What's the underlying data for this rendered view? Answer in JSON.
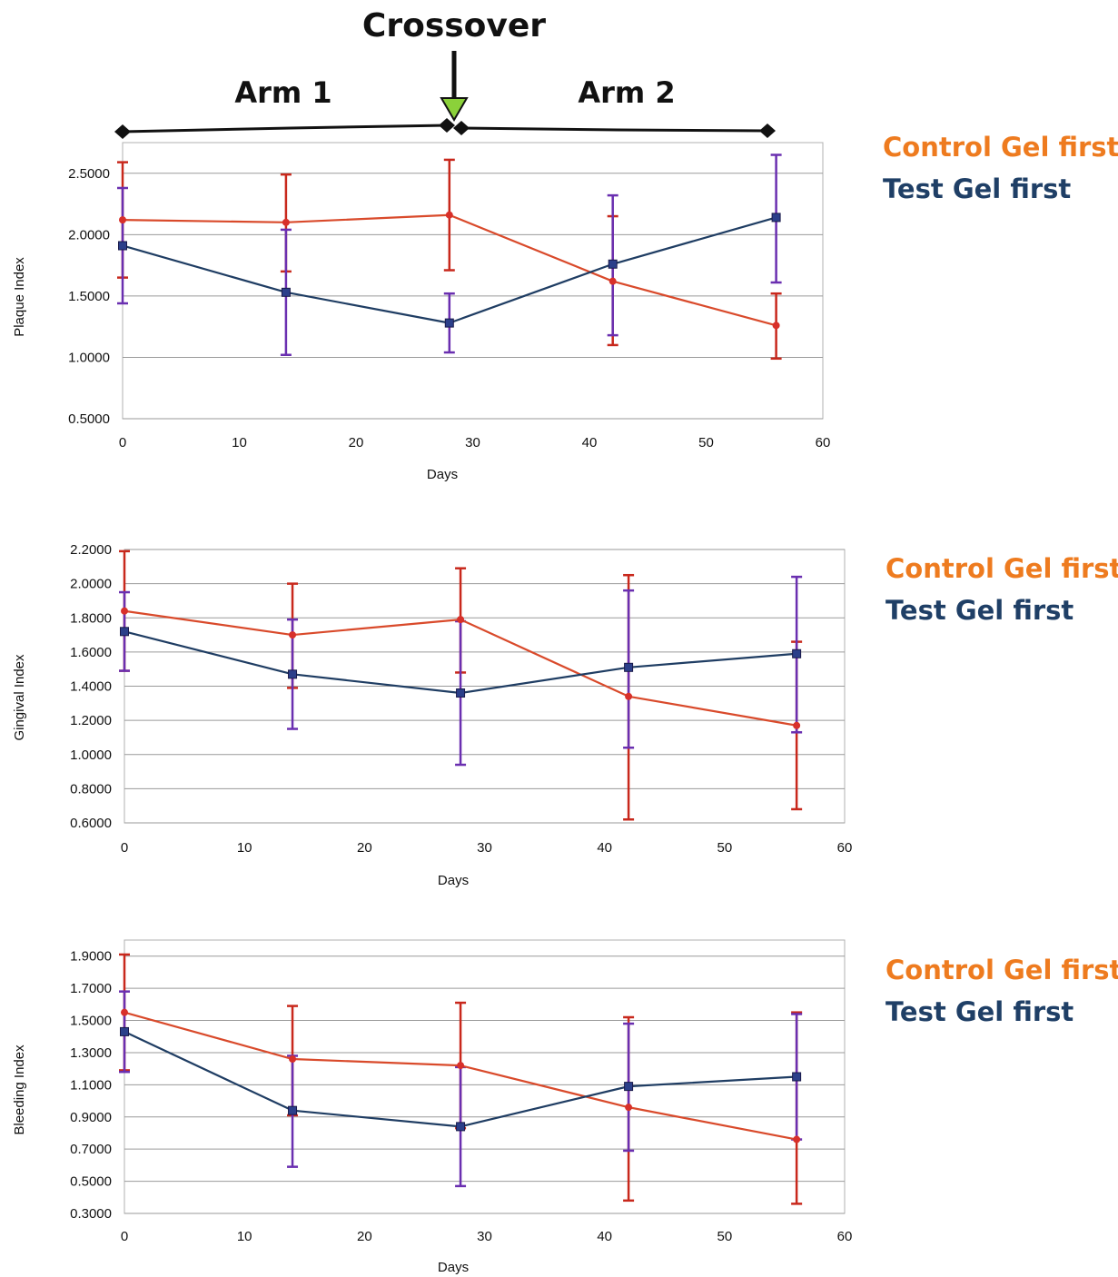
{
  "header": {
    "crossover_label": "Crossover",
    "arm1_label": "Arm 1",
    "arm2_label": "Arm 2"
  },
  "colors": {
    "control": "#d94a2b",
    "test": "#1f3d63",
    "control_legend": "#ee7b1f",
    "test_legend": "#1f3f66",
    "error_bar_test": "#6a2fb0",
    "error_bar_control": "#c8281c",
    "grid": "#9a9a9a",
    "crossover_arrow_tip": "#8bd13a"
  },
  "legend": {
    "control": "Control Gel first",
    "test": "Test Gel first"
  },
  "chart_data": [
    {
      "type": "line",
      "xlabel": "Days",
      "ylabel": "Plaque Index",
      "xlim": [
        0,
        60
      ],
      "ylim": [
        0.5,
        2.75
      ],
      "x_ticks": [
        "0",
        "10",
        "20",
        "30",
        "40",
        "50",
        "60"
      ],
      "y_ticks": [
        "0.5000",
        "1.0000",
        "1.5000",
        "2.0000",
        "2.5000"
      ],
      "grid": true,
      "legend_position": "right",
      "x": [
        0,
        14,
        28,
        42,
        56
      ],
      "series": [
        {
          "name": "Control Gel first",
          "values": [
            2.12,
            2.1,
            2.16,
            1.62,
            1.26
          ],
          "err_low": [
            1.65,
            1.7,
            1.71,
            1.1,
            0.99
          ],
          "err_high": [
            2.59,
            2.49,
            2.61,
            2.15,
            1.52
          ]
        },
        {
          "name": "Test Gel first",
          "values": [
            1.91,
            1.53,
            1.28,
            1.76,
            2.14
          ],
          "err_low": [
            1.44,
            1.02,
            1.04,
            1.18,
            1.61
          ],
          "err_high": [
            2.38,
            2.04,
            1.52,
            2.32,
            2.65
          ]
        }
      ]
    },
    {
      "type": "line",
      "xlabel": "Days",
      "ylabel": "Gingival Index",
      "xlim": [
        0,
        60
      ],
      "ylim": [
        0.6,
        2.2
      ],
      "x_ticks": [
        "0",
        "10",
        "20",
        "30",
        "40",
        "50",
        "60"
      ],
      "y_ticks": [
        "0.6000",
        "0.8000",
        "1.0000",
        "1.2000",
        "1.4000",
        "1.6000",
        "1.8000",
        "2.0000",
        "2.2000"
      ],
      "grid": true,
      "legend_position": "right",
      "x": [
        0,
        14,
        28,
        42,
        56
      ],
      "series": [
        {
          "name": "Control Gel first",
          "values": [
            1.84,
            1.7,
            1.79,
            1.34,
            1.17
          ],
          "err_low": [
            1.49,
            1.39,
            1.48,
            0.62,
            0.68
          ],
          "err_high": [
            2.19,
            2.0,
            2.09,
            2.05,
            1.66
          ]
        },
        {
          "name": "Test Gel first",
          "values": [
            1.72,
            1.47,
            1.36,
            1.51,
            1.59
          ],
          "err_low": [
            1.49,
            1.15,
            0.94,
            1.04,
            1.13
          ],
          "err_high": [
            1.95,
            1.79,
            1.78,
            1.96,
            2.04
          ]
        }
      ]
    },
    {
      "type": "line",
      "xlabel": "Days",
      "ylabel": "Bleeding Index",
      "xlim": [
        0,
        60
      ],
      "ylim": [
        0.3,
        2.0
      ],
      "x_ticks": [
        "0",
        "10",
        "20",
        "30",
        "40",
        "50",
        "60"
      ],
      "y_ticks": [
        "0.3000",
        "0.5000",
        "0.7000",
        "0.9000",
        "1.1000",
        "1.3000",
        "1.5000",
        "1.7000",
        "1.9000"
      ],
      "grid": true,
      "legend_position": "right",
      "x": [
        0,
        14,
        28,
        42,
        56
      ],
      "series": [
        {
          "name": "Control Gel first",
          "values": [
            1.55,
            1.26,
            1.22,
            0.96,
            0.76
          ],
          "err_low": [
            1.19,
            0.91,
            0.83,
            0.38,
            0.36
          ],
          "err_high": [
            1.91,
            1.59,
            1.61,
            1.52,
            1.55
          ]
        },
        {
          "name": "Test Gel first",
          "values": [
            1.43,
            0.94,
            0.84,
            1.09,
            1.15
          ],
          "err_low": [
            1.18,
            0.59,
            0.47,
            0.69,
            0.76
          ],
          "err_high": [
            1.68,
            1.28,
            1.21,
            1.48,
            1.54
          ]
        }
      ]
    }
  ]
}
